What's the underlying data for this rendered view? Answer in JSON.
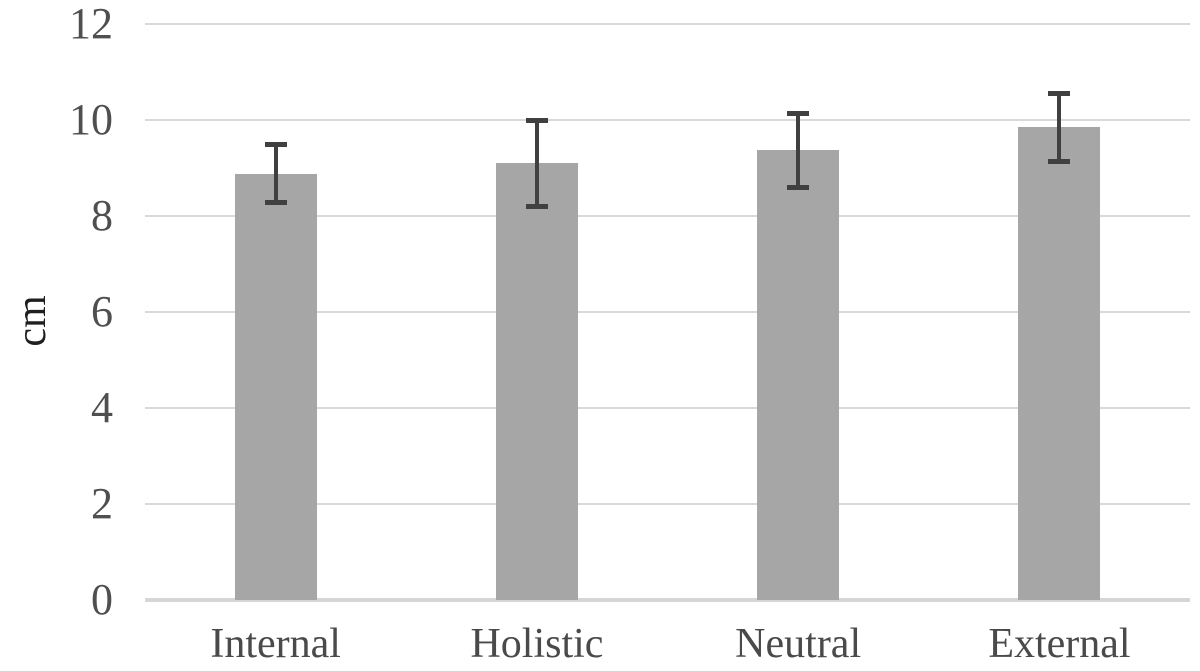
{
  "chart_data": {
    "type": "bar",
    "title": "",
    "xlabel": "",
    "ylabel": "cm",
    "categories": [
      "Internal",
      "Holistic",
      "Neutral",
      "External"
    ],
    "values": [
      8.88,
      9.1,
      9.37,
      9.85
    ],
    "error_bars": [
      0.66,
      0.95,
      0.82,
      0.76
    ],
    "ylim": [
      0,
      12
    ],
    "yticks": [
      0,
      2,
      4,
      6,
      8,
      10,
      12
    ],
    "grid": true,
    "legend": "none",
    "bar_color": "#a6a6a6",
    "error_bar_color": "#404040",
    "gridline_color": "#d9d9d9",
    "axis_line_color": "#d6d6d6",
    "tick_text_color": "#4f4f4f",
    "category_text_color": "#4a4a4a",
    "ylabel_text_color": "#1f1f1f",
    "background_color": "#ffffff"
  }
}
